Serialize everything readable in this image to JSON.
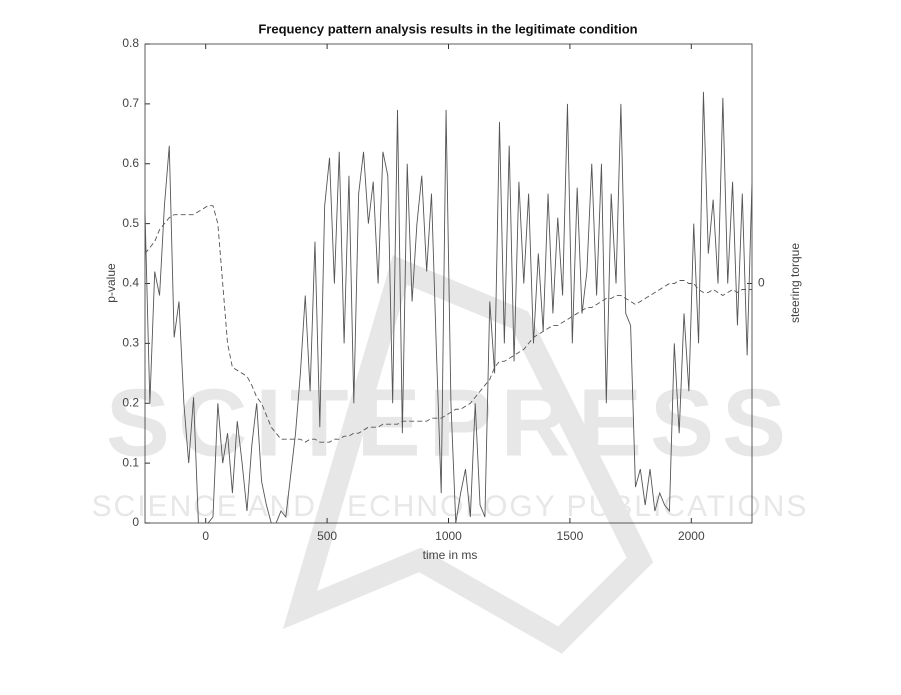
{
  "chart_data": {
    "type": "line",
    "title": "Frequency pattern analysis results in the legitimate condition",
    "xlabel": "time in ms",
    "ylabel": "p-value",
    "y2label": "steering torque",
    "watermark": "SCITEPRESS",
    "watermark_subtitle": "SCIENCE AND TECHNOLOGY PUBLICATIONS",
    "x": [
      -250,
      -230,
      -210,
      -190,
      -170,
      -150,
      -130,
      -110,
      -90,
      -70,
      -50,
      -30,
      -10,
      10,
      30,
      50,
      70,
      90,
      110,
      130,
      150,
      170,
      190,
      210,
      230,
      250,
      270,
      290,
      310,
      330,
      350,
      370,
      390,
      410,
      430,
      450,
      470,
      490,
      510,
      530,
      550,
      570,
      590,
      610,
      630,
      650,
      670,
      690,
      710,
      730,
      750,
      770,
      790,
      810,
      830,
      850,
      870,
      890,
      910,
      930,
      950,
      970,
      990,
      1010,
      1030,
      1050,
      1070,
      1090,
      1110,
      1130,
      1150,
      1170,
      1190,
      1210,
      1230,
      1250,
      1270,
      1290,
      1310,
      1330,
      1350,
      1370,
      1390,
      1410,
      1430,
      1450,
      1470,
      1490,
      1510,
      1530,
      1550,
      1570,
      1590,
      1610,
      1630,
      1650,
      1670,
      1690,
      1710,
      1730,
      1750,
      1770,
      1790,
      1810,
      1830,
      1850,
      1870,
      1890,
      1910,
      1930,
      1950,
      1970,
      1990,
      2010,
      2030,
      2050,
      2070,
      2090,
      2110,
      2130,
      2150,
      2170,
      2190,
      2210,
      2230,
      2250
    ],
    "series": [
      {
        "name": "p-value",
        "color": "#555555",
        "dash": "none",
        "axis": "y",
        "values": [
          0.52,
          0.2,
          0.42,
          0.38,
          0.53,
          0.63,
          0.31,
          0.37,
          0.2,
          0.1,
          0.21,
          0.0,
          0.0,
          0.0,
          0.01,
          0.2,
          0.1,
          0.15,
          0.05,
          0.17,
          0.1,
          0.02,
          0.13,
          0.2,
          0.07,
          0.03,
          0.0,
          0.0,
          0.02,
          0.01,
          0.08,
          0.15,
          0.25,
          0.38,
          0.22,
          0.47,
          0.16,
          0.53,
          0.61,
          0.4,
          0.62,
          0.3,
          0.58,
          0.2,
          0.55,
          0.62,
          0.5,
          0.57,
          0.4,
          0.62,
          0.58,
          0.2,
          0.69,
          0.15,
          0.6,
          0.37,
          0.5,
          0.58,
          0.42,
          0.55,
          0.29,
          0.05,
          0.69,
          0.2,
          0.0,
          0.05,
          0.09,
          0.01,
          0.2,
          0.03,
          0.01,
          0.37,
          0.25,
          0.67,
          0.3,
          0.63,
          0.27,
          0.57,
          0.4,
          0.55,
          0.3,
          0.45,
          0.32,
          0.55,
          0.35,
          0.51,
          0.38,
          0.7,
          0.3,
          0.56,
          0.35,
          0.42,
          0.6,
          0.38,
          0.6,
          0.2,
          0.55,
          0.4,
          0.7,
          0.35,
          0.33,
          0.06,
          0.09,
          0.03,
          0.09,
          0.02,
          0.05,
          0.03,
          0.02,
          0.3,
          0.15,
          0.35,
          0.22,
          0.5,
          0.3,
          0.72,
          0.45,
          0.54,
          0.4,
          0.71,
          0.4,
          0.57,
          0.33,
          0.55,
          0.28,
          0.57
        ]
      },
      {
        "name": "steering torque",
        "color": "#555555",
        "dash": "5,3",
        "axis": "y2",
        "values": [
          0.05,
          0.06,
          0.07,
          0.09,
          0.1,
          0.11,
          0.115,
          0.115,
          0.115,
          0.115,
          0.115,
          0.12,
          0.125,
          0.13,
          0.13,
          0.1,
          0.0,
          -0.1,
          -0.14,
          -0.145,
          -0.15,
          -0.155,
          -0.17,
          -0.19,
          -0.2,
          -0.22,
          -0.24,
          -0.25,
          -0.26,
          -0.26,
          -0.26,
          -0.26,
          -0.26,
          -0.265,
          -0.26,
          -0.26,
          -0.265,
          -0.265,
          -0.265,
          -0.26,
          -0.26,
          -0.255,
          -0.255,
          -0.25,
          -0.25,
          -0.245,
          -0.24,
          -0.24,
          -0.24,
          -0.235,
          -0.235,
          -0.235,
          -0.235,
          -0.23,
          -0.23,
          -0.23,
          -0.23,
          -0.23,
          -0.23,
          -0.225,
          -0.225,
          -0.225,
          -0.22,
          -0.215,
          -0.21,
          -0.21,
          -0.205,
          -0.2,
          -0.19,
          -0.18,
          -0.17,
          -0.16,
          -0.14,
          -0.13,
          -0.13,
          -0.125,
          -0.12,
          -0.115,
          -0.11,
          -0.1,
          -0.09,
          -0.085,
          -0.08,
          -0.075,
          -0.07,
          -0.07,
          -0.065,
          -0.06,
          -0.055,
          -0.05,
          -0.045,
          -0.04,
          -0.04,
          -0.035,
          -0.03,
          -0.025,
          -0.025,
          -0.02,
          -0.02,
          -0.025,
          -0.03,
          -0.035,
          -0.03,
          -0.025,
          -0.02,
          -0.015,
          -0.01,
          -0.005,
          0.0,
          0.0,
          0.005,
          0.005,
          0.0,
          0.0,
          -0.01,
          -0.015,
          -0.015,
          -0.01,
          -0.015,
          -0.02,
          -0.015,
          -0.01,
          -0.015,
          -0.01,
          -0.01,
          -0.01
        ]
      }
    ],
    "xlim": [
      -250,
      2250
    ],
    "xticks": [
      0,
      500,
      1000,
      1500,
      2000
    ],
    "ylim": [
      0,
      0.8
    ],
    "yticks": [
      0,
      0.1,
      0.2,
      0.3,
      0.4,
      0.5,
      0.6,
      0.7,
      0.8
    ],
    "y2lim": [
      -0.4,
      0.4
    ],
    "y2ticks": [
      0
    ],
    "grid": false
  }
}
